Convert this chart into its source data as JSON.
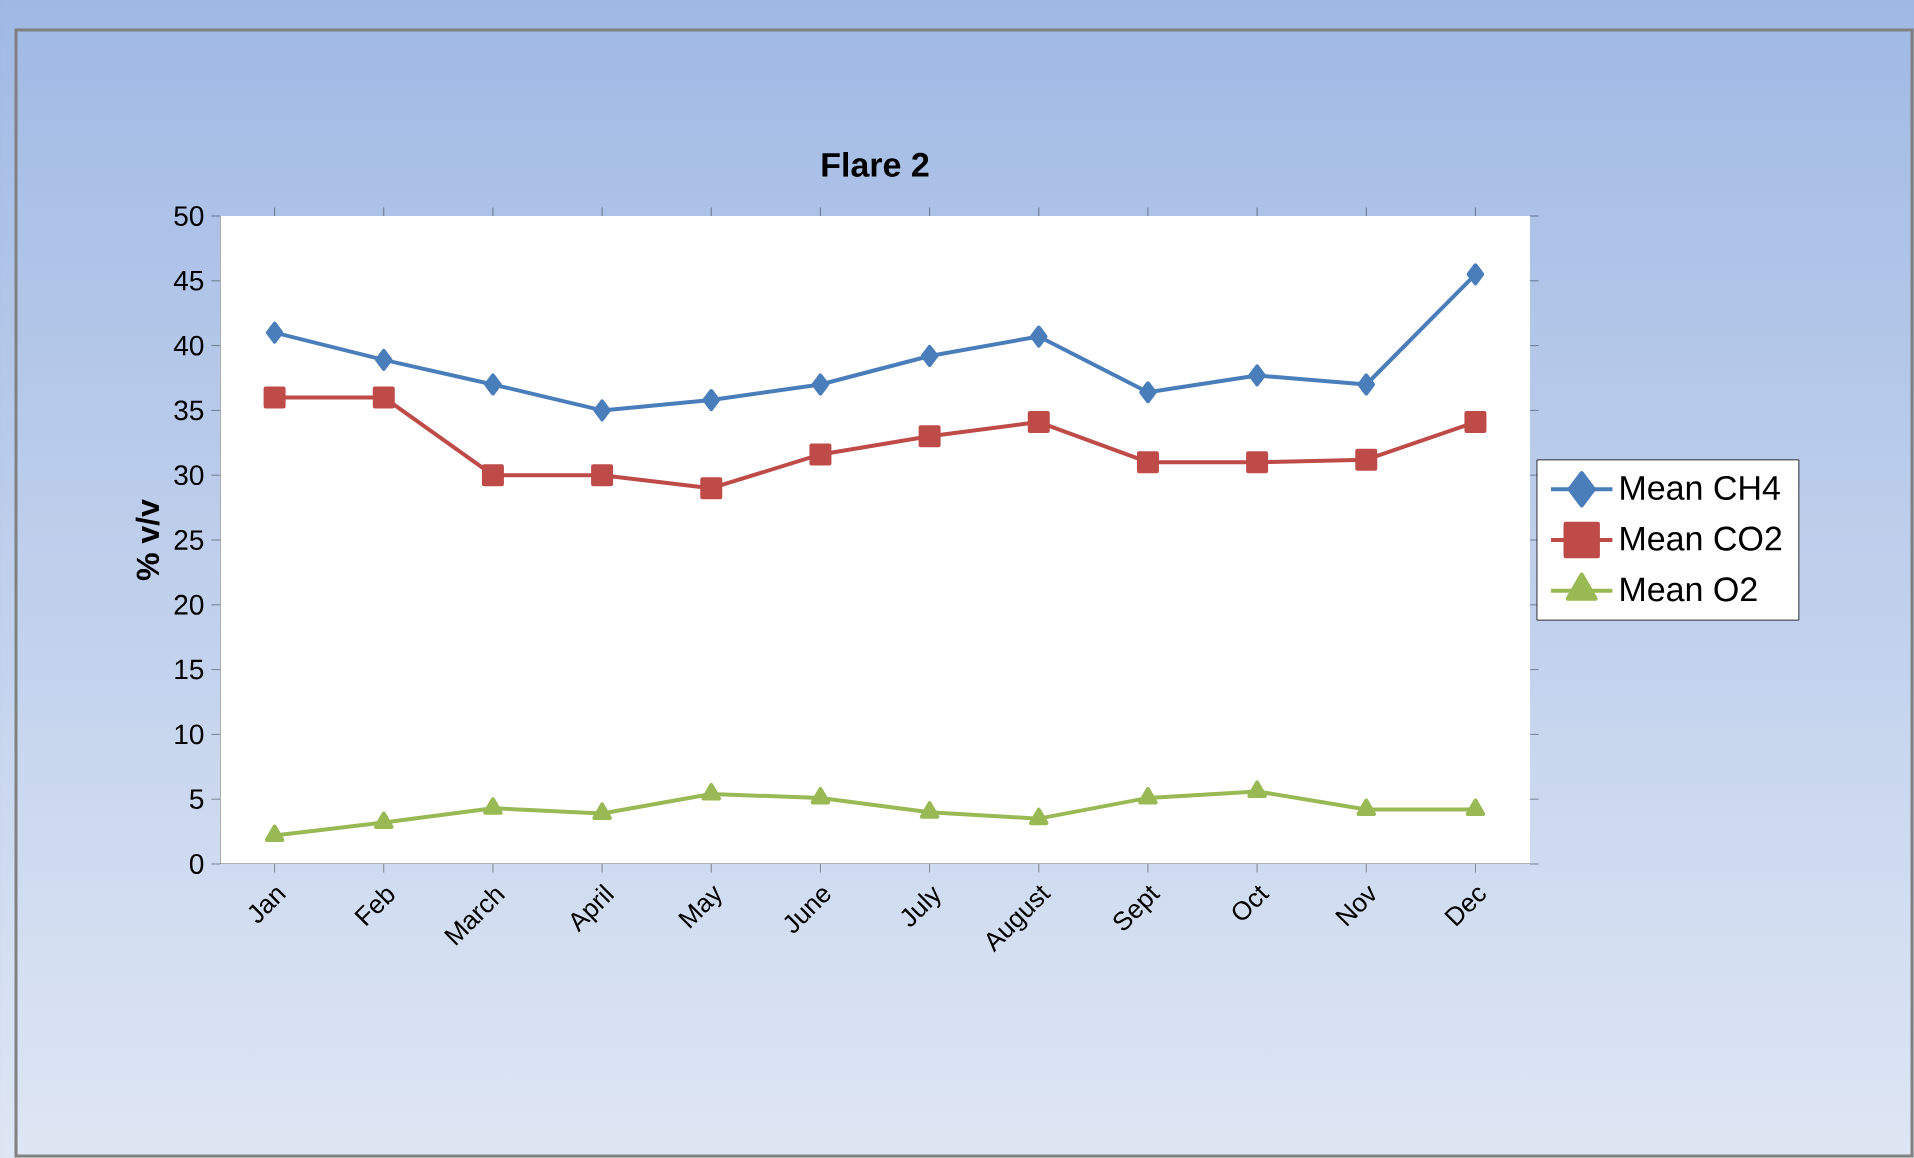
{
  "chart_data": {
    "type": "line",
    "title": "Flare 2",
    "ylabel": "% v/v",
    "categories": [
      "Jan",
      "Feb",
      "March",
      "April",
      "May",
      "June",
      "July",
      "August",
      "Sept",
      "Oct",
      "Nov",
      "Dec"
    ],
    "series": [
      {
        "name": "Mean CH4",
        "color": "#4a7ebb",
        "marker": "diamond",
        "values": [
          41.0,
          38.9,
          37.0,
          35.0,
          35.8,
          37.0,
          39.2,
          40.7,
          36.4,
          37.7,
          37.0,
          45.5
        ]
      },
      {
        "name": "Mean CO2",
        "color": "#be4b48",
        "marker": "square",
        "values": [
          36.0,
          36.0,
          30.0,
          30.0,
          29.0,
          31.6,
          33.0,
          34.1,
          31.0,
          31.0,
          31.2,
          34.1
        ]
      },
      {
        "name": "Mean O2",
        "color": "#98b954",
        "marker": "triangle",
        "values": [
          2.2,
          3.2,
          4.3,
          3.9,
          5.4,
          5.1,
          4.0,
          3.5,
          5.1,
          5.6,
          4.2,
          4.2
        ]
      }
    ],
    "ylim": [
      0,
      50
    ],
    "yticks": [
      0,
      5,
      10,
      15,
      20,
      25,
      30,
      35,
      40,
      45,
      50
    ],
    "grid": false,
    "legend": "right"
  }
}
